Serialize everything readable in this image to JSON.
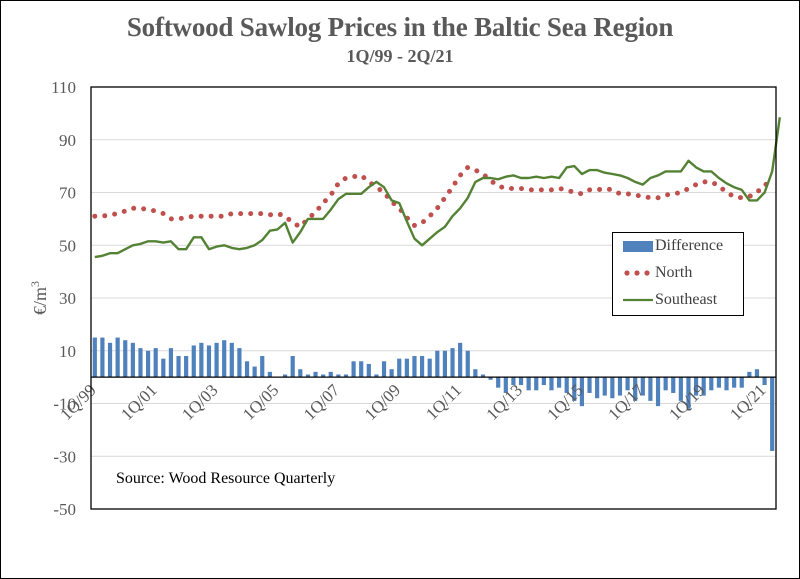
{
  "chart_data": {
    "type": "line",
    "title": "Softwood Sawlog Prices in the Baltic Sea Region",
    "subtitle": "1Q/99 - 2Q/21",
    "ylabel": "€/m³",
    "ylabel_base": "€/m",
    "ylabel_sup": "3",
    "xlabel": "",
    "ylim": [
      -50,
      110
    ],
    "yticks": [
      110,
      90,
      70,
      50,
      30,
      10,
      -10,
      -30,
      -50
    ],
    "xtick_labels": [
      "1Q/99",
      "1Q/01",
      "1Q/03",
      "1Q/05",
      "1Q/07",
      "1Q/09",
      "1Q/11",
      "1Q/13",
      "1Q/15",
      "1Q/17",
      "1Q/19",
      "1Q/21"
    ],
    "xtick_label_rotation": "-45deg",
    "grid": true,
    "legend_position": "right",
    "annotation": "Source: Wood Resource Quarterly",
    "categories_range": "1Q/99 - 2Q/21 (quarterly)",
    "series": [
      {
        "name": "Difference",
        "type": "bar",
        "color": "#4F81BD",
        "values": [
          15,
          15,
          13,
          15,
          14,
          13,
          11,
          10,
          11,
          7,
          11,
          8,
          8,
          12,
          13,
          12,
          13,
          14,
          13,
          11,
          6,
          4,
          8,
          2,
          0,
          1,
          8,
          3,
          1,
          2,
          1,
          2,
          1,
          1,
          6,
          6,
          5,
          1,
          6,
          3,
          7,
          7,
          8,
          8,
          7,
          10,
          10,
          11,
          13,
          10,
          3,
          1,
          -1,
          -4,
          -6,
          -3,
          -3,
          -5,
          -5,
          -3,
          -5,
          -4,
          -6,
          -9,
          -11,
          -6,
          -8,
          -7,
          -8,
          -7,
          -5,
          -9,
          -7,
          -9,
          -11,
          -5,
          -6,
          -9,
          -12,
          -7,
          -7,
          -5,
          -4,
          -5,
          -4,
          -4,
          2,
          3,
          -3,
          -28
        ]
      },
      {
        "name": "North",
        "type": "line",
        "style": "dotted",
        "color": "#C0504D",
        "values": [
          61,
          61,
          61.5,
          62,
          63,
          64,
          64,
          63.5,
          63,
          62,
          60,
          60,
          60.5,
          61,
          61,
          61,
          61,
          61,
          62,
          62,
          62,
          62,
          62,
          61.5,
          62,
          61,
          58.5,
          57,
          60,
          62.5,
          66,
          69,
          73.5,
          75.5,
          76,
          76.5,
          74,
          72,
          70,
          66.5,
          64,
          60.5,
          57.5,
          58.5,
          61,
          64,
          68,
          72,
          76.5,
          79.5,
          78.5,
          77,
          74.5,
          72.5,
          71.5,
          71.5,
          71.5,
          71,
          71,
          71,
          71,
          71.5,
          71,
          70,
          69.5,
          71,
          71,
          71.5,
          71,
          69.5,
          69.5,
          69,
          68.5,
          68,
          68,
          69,
          69.5,
          70,
          71.5,
          73,
          74,
          74,
          72.5,
          70,
          68.5,
          68,
          68.5,
          70,
          73,
          73.5
        ]
      },
      {
        "name": "Southeast",
        "type": "line",
        "style": "solid",
        "color": "#548235",
        "values": [
          45.5,
          46,
          47,
          47,
          48.5,
          50,
          50.5,
          51.5,
          51.5,
          51,
          51.5,
          48.5,
          48.5,
          53,
          53,
          48.5,
          49.5,
          50,
          49,
          48.5,
          49,
          50,
          52,
          55.5,
          56,
          58.5,
          51,
          55,
          60,
          60,
          60,
          63.5,
          67.5,
          69.5,
          69.5,
          69.5,
          72,
          74,
          72,
          67,
          66,
          59,
          52.5,
          50,
          52.5,
          55,
          57,
          61,
          64,
          68,
          74,
          75.5,
          75.5,
          75,
          76,
          76.5,
          75.5,
          75.5,
          76,
          75.5,
          76,
          75.5,
          79.5,
          80,
          77,
          78.5,
          78.5,
          77.5,
          77,
          76.5,
          75.5,
          74,
          73,
          75.5,
          76.5,
          78,
          78,
          78,
          82,
          79.5,
          78,
          78,
          75.5,
          73.5,
          72,
          71,
          67,
          67,
          70,
          78,
          98.5
        ]
      }
    ]
  }
}
